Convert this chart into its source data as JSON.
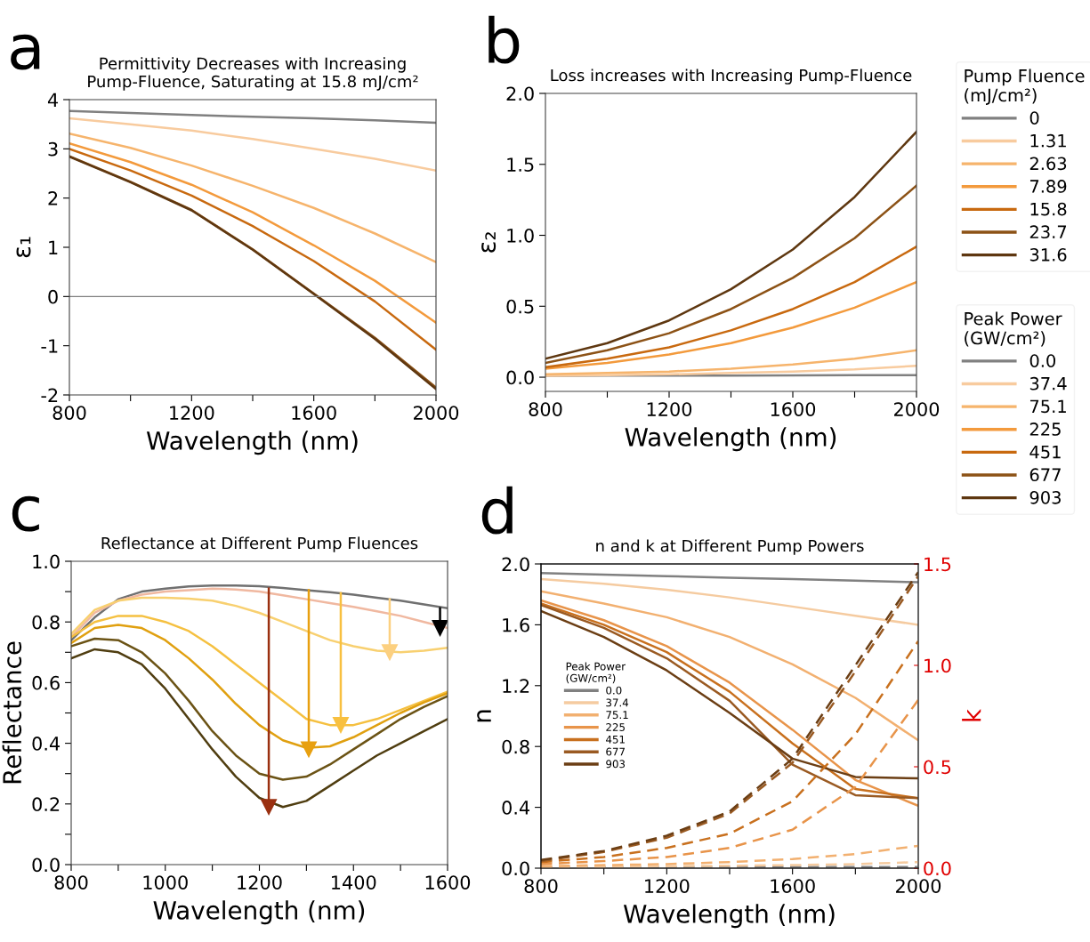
{
  "chart_data": [
    {
      "type": "line",
      "title": "Permittivity Decreases with Increasing\nPump-Fluence, Saturating at 15.8 mJ/cm²",
      "xlabel": "Wavelength (nm)",
      "ylabel": "ε₁",
      "annotations": [
        "a"
      ],
      "x": [
        800,
        1000,
        1200,
        1400,
        1600,
        1800,
        2000
      ],
      "xlim": [
        800,
        2000
      ],
      "ylim": [
        -2,
        4
      ],
      "xticks": [
        800,
        {
          "value": 1000,
          "label": null
        },
        1200,
        {
          "value": 1400,
          "label": null
        },
        1600,
        {
          "value": 1800,
          "label": null
        },
        2000
      ],
      "yticks": [
        -2,
        -1,
        0,
        1,
        2,
        3,
        4
      ],
      "ref_lines": [
        {
          "axis": "y",
          "value": 0,
          "color": "#808080"
        }
      ],
      "legend": "right",
      "legend_title": "Pump Fluence\n(mJ/cm²)",
      "series": [
        {
          "name": "0",
          "color": "#808080",
          "values": [
            3.77,
            3.73,
            3.69,
            3.65,
            3.62,
            3.58,
            3.53
          ]
        },
        {
          "name": "1.31",
          "color": "#f8cb9e",
          "values": [
            3.62,
            3.5,
            3.37,
            3.2,
            3.0,
            2.8,
            2.56
          ]
        },
        {
          "name": "2.63",
          "color": "#f6b46c",
          "values": [
            3.31,
            3.02,
            2.66,
            2.25,
            1.8,
            1.28,
            0.7
          ]
        },
        {
          "name": "7.89",
          "color": "#f39a3c",
          "values": [
            3.11,
            2.73,
            2.27,
            1.71,
            1.04,
            0.32,
            -0.53
          ]
        },
        {
          "name": "15.8",
          "color": "#c8690f",
          "values": [
            3.0,
            2.56,
            2.05,
            1.43,
            0.72,
            -0.1,
            -1.08
          ]
        },
        {
          "name": "23.7",
          "color": "#8c5216",
          "values": [
            2.85,
            2.33,
            1.76,
            0.96,
            0.06,
            -0.84,
            -1.85
          ]
        },
        {
          "name": "31.6",
          "color": "#5e3710",
          "values": [
            2.84,
            2.32,
            1.75,
            0.95,
            0.05,
            -0.86,
            -1.88
          ]
        }
      ]
    },
    {
      "type": "line",
      "title": "Loss increases with Increasing Pump-Fluence",
      "xlabel": "Wavelength (nm)",
      "ylabel": "ε₂",
      "annotations": [
        "b"
      ],
      "x": [
        800,
        1000,
        1200,
        1400,
        1600,
        1800,
        2000
      ],
      "xlim": [
        800,
        2000
      ],
      "ylim": [
        -0.1,
        2.0
      ],
      "xticks": [
        800,
        {
          "value": 1000,
          "label": null
        },
        1200,
        {
          "value": 1400,
          "label": null
        },
        1600,
        {
          "value": 1800,
          "label": null
        },
        2000
      ],
      "yticks": [
        {
          "value": 0,
          "label": "0.0"
        },
        0.5,
        {
          "value": 1,
          "label": "1.0"
        },
        1.5,
        {
          "value": 2,
          "label": "2.0"
        }
      ],
      "legend": "right",
      "legend_title": "Peak Power\n(GW/cm²)",
      "series": [
        {
          "name": "0.0",
          "color": "#808080",
          "values": [
            0.01,
            0.011,
            0.012,
            0.012,
            0.013,
            0.014,
            0.015
          ]
        },
        {
          "name": "37.4",
          "color": "#f8cb9e",
          "values": [
            0.01,
            0.015,
            0.02,
            0.03,
            0.04,
            0.055,
            0.08
          ]
        },
        {
          "name": "75.1",
          "color": "#f6b46c",
          "values": [
            0.02,
            0.03,
            0.04,
            0.06,
            0.09,
            0.13,
            0.19
          ]
        },
        {
          "name": "225",
          "color": "#f39a3c",
          "values": [
            0.06,
            0.1,
            0.16,
            0.24,
            0.35,
            0.49,
            0.67
          ]
        },
        {
          "name": "451",
          "color": "#c8690f",
          "values": [
            0.07,
            0.13,
            0.21,
            0.33,
            0.48,
            0.67,
            0.92
          ]
        },
        {
          "name": "677",
          "color": "#8c5216",
          "values": [
            0.1,
            0.19,
            0.31,
            0.48,
            0.7,
            0.98,
            1.35
          ]
        },
        {
          "name": "903",
          "color": "#5e3710",
          "values": [
            0.13,
            0.24,
            0.4,
            0.62,
            0.9,
            1.27,
            1.73
          ]
        }
      ]
    },
    {
      "type": "line",
      "title": "Reflectance at Different Pump Fluences",
      "xlabel": "Wavelength (nm)",
      "ylabel": "Reflectance",
      "annotations": [
        "c"
      ],
      "x": [
        800,
        850,
        900,
        950,
        1000,
        1050,
        1100,
        1150,
        1200,
        1250,
        1300,
        1350,
        1400,
        1450,
        1500,
        1550,
        1600
      ],
      "xlim": [
        800,
        1600
      ],
      "ylim": [
        0,
        1
      ],
      "xticks": [
        800,
        {
          "value": 900,
          "label": null
        },
        1000,
        {
          "value": 1100,
          "label": null
        },
        1200,
        {
          "value": 1300,
          "label": null
        },
        1400,
        {
          "value": 1500,
          "label": null
        },
        1600
      ],
      "yticks": [
        {
          "value": 0,
          "label": "0.0"
        },
        {
          "value": 0.1,
          "label": null
        },
        0.2,
        {
          "value": 0.3,
          "label": null
        },
        0.4,
        {
          "value": 0.5,
          "label": null
        },
        0.6,
        {
          "value": 0.7,
          "label": null
        },
        0.8,
        {
          "value": 0.9,
          "label": null
        },
        {
          "value": 1,
          "label": "1.0"
        }
      ],
      "series": [
        {
          "color": "#707070",
          "values": [
            0.74,
            0.815,
            0.875,
            0.9,
            0.91,
            0.917,
            0.92,
            0.92,
            0.918,
            0.912,
            0.905,
            0.898,
            0.89,
            0.88,
            0.87,
            0.858,
            0.845
          ]
        },
        {
          "color": "#f0b8a0",
          "values": [
            0.75,
            0.83,
            0.87,
            0.89,
            0.9,
            0.905,
            0.91,
            0.907,
            0.9,
            0.888,
            0.875,
            0.862,
            0.85,
            0.835,
            0.82,
            0.8,
            0.78
          ]
        },
        {
          "color": "#f8d070",
          "values": [
            0.76,
            0.84,
            0.87,
            0.88,
            0.88,
            0.877,
            0.87,
            0.853,
            0.83,
            0.8,
            0.77,
            0.74,
            0.72,
            0.705,
            0.7,
            0.705,
            0.715
          ]
        },
        {
          "color": "#f5c040",
          "values": [
            0.75,
            0.8,
            0.82,
            0.82,
            0.8,
            0.77,
            0.72,
            0.66,
            0.6,
            0.54,
            0.48,
            0.46,
            0.46,
            0.48,
            0.51,
            0.54,
            0.57
          ]
        },
        {
          "color": "#e0a010",
          "values": [
            0.73,
            0.78,
            0.79,
            0.78,
            0.74,
            0.68,
            0.61,
            0.53,
            0.46,
            0.41,
            0.385,
            0.39,
            0.42,
            0.46,
            0.5,
            0.535,
            0.565
          ]
        },
        {
          "color": "#6b5315",
          "values": [
            0.72,
            0.745,
            0.74,
            0.7,
            0.63,
            0.54,
            0.44,
            0.36,
            0.3,
            0.28,
            0.29,
            0.33,
            0.38,
            0.43,
            0.48,
            0.52,
            0.555
          ]
        },
        {
          "color": "#4f3d10",
          "values": [
            0.68,
            0.71,
            0.7,
            0.66,
            0.58,
            0.48,
            0.38,
            0.29,
            0.22,
            0.19,
            0.21,
            0.26,
            0.31,
            0.36,
            0.4,
            0.44,
            0.48
          ]
        },
        {
          "color": "#9a3010",
          "marker": "triangle",
          "x": [
            1220,
            1220
          ],
          "values": [
            0.91,
            0.19
          ]
        },
        {
          "color": "#e8a010",
          "marker": "triangle",
          "x": [
            1305,
            1305
          ],
          "values": [
            0.905,
            0.38
          ]
        },
        {
          "color": "#f8c040",
          "marker": "triangle",
          "x": [
            1373,
            1373
          ],
          "values": [
            0.895,
            0.46
          ]
        },
        {
          "color": "#fcd080",
          "marker": "triangle",
          "x": [
            1477,
            1477
          ],
          "values": [
            0.875,
            0.7
          ]
        },
        {
          "color": "#000000",
          "marker": "triangle",
          "x": [
            1584,
            1584
          ],
          "values": [
            0.845,
            0.78
          ]
        }
      ]
    },
    {
      "type": "line",
      "title": "n and k at Different Pump Powers",
      "xlabel": "Wavelength (nm)",
      "ylabel": "n",
      "y2label": "k",
      "annotations": [
        "d"
      ],
      "x": [
        800,
        1000,
        1200,
        1400,
        1600,
        1800,
        2000
      ],
      "xlim": [
        800,
        2000
      ],
      "ylim": [
        0,
        2
      ],
      "y2lim": [
        0,
        1.5
      ],
      "xticks": [
        800,
        {
          "value": 1000,
          "label": null
        },
        1200,
        {
          "value": 1400,
          "label": null
        },
        1600,
        {
          "value": 1800,
          "label": null
        },
        2000
      ],
      "yticks": [
        {
          "value": 0,
          "label": "0.0"
        },
        0.4,
        0.8,
        1.2,
        1.6,
        {
          "value": 2,
          "label": "2.0"
        }
      ],
      "y2ticks": [
        {
          "value": 0,
          "label": "0.0"
        },
        0.5,
        {
          "value": 1,
          "label": "1.0"
        },
        1.5
      ],
      "legend": "left",
      "legend_title": "Peak Power\n(GW/cm²)",
      "series": [
        {
          "name": "0.0",
          "color": "#808080",
          "values": [
            1.94,
            1.93,
            1.92,
            1.91,
            1.9,
            1.89,
            1.88
          ]
        },
        {
          "name": "37.4",
          "color": "#f5cba0",
          "values": [
            1.9,
            1.87,
            1.83,
            1.78,
            1.72,
            1.66,
            1.6
          ]
        },
        {
          "name": "75.1",
          "color": "#f2b070",
          "values": [
            1.82,
            1.74,
            1.65,
            1.52,
            1.34,
            1.12,
            0.84
          ]
        },
        {
          "name": "225",
          "color": "#e8944a",
          "values": [
            1.76,
            1.63,
            1.46,
            1.22,
            0.91,
            0.58,
            0.41
          ]
        },
        {
          "name": "451",
          "color": "#c8701e",
          "values": [
            1.74,
            1.6,
            1.42,
            1.16,
            0.82,
            0.52,
            0.46
          ]
        },
        {
          "name": "677",
          "color": "#9a5a22",
          "values": [
            1.73,
            1.58,
            1.38,
            1.1,
            0.68,
            0.48,
            0.46
          ]
        },
        {
          "name": "903",
          "color": "#6b3e14",
          "values": [
            1.69,
            1.52,
            1.3,
            1.02,
            0.72,
            0.6,
            0.59
          ]
        },
        {
          "color": "#808080",
          "axis": "y2",
          "line_style": "dashed",
          "values": [
            0.005,
            0.005,
            0.005,
            0.005,
            0.005,
            0.005,
            0.005
          ]
        },
        {
          "color": "#f5cba0",
          "axis": "y2",
          "line_style": "dashed",
          "values": [
            0.005,
            0.007,
            0.01,
            0.012,
            0.015,
            0.02,
            0.03
          ]
        },
        {
          "color": "#f2b070",
          "axis": "y2",
          "line_style": "dashed",
          "values": [
            0.01,
            0.015,
            0.02,
            0.03,
            0.045,
            0.07,
            0.11
          ]
        },
        {
          "color": "#e8944a",
          "axis": "y2",
          "line_style": "dashed",
          "values": [
            0.02,
            0.035,
            0.055,
            0.1,
            0.19,
            0.4,
            0.83
          ]
        },
        {
          "color": "#c8701e",
          "axis": "y2",
          "line_style": "dashed",
          "values": [
            0.03,
            0.055,
            0.1,
            0.17,
            0.33,
            0.66,
            1.12
          ]
        },
        {
          "color": "#9a5a22",
          "axis": "y2",
          "line_style": "dashed",
          "values": [
            0.035,
            0.08,
            0.15,
            0.27,
            0.52,
            0.97,
            1.44
          ]
        },
        {
          "color": "#6b3e14",
          "axis": "y2",
          "line_style": "dashed",
          "values": [
            0.04,
            0.085,
            0.16,
            0.28,
            0.54,
            1.0,
            1.46
          ]
        }
      ]
    }
  ]
}
